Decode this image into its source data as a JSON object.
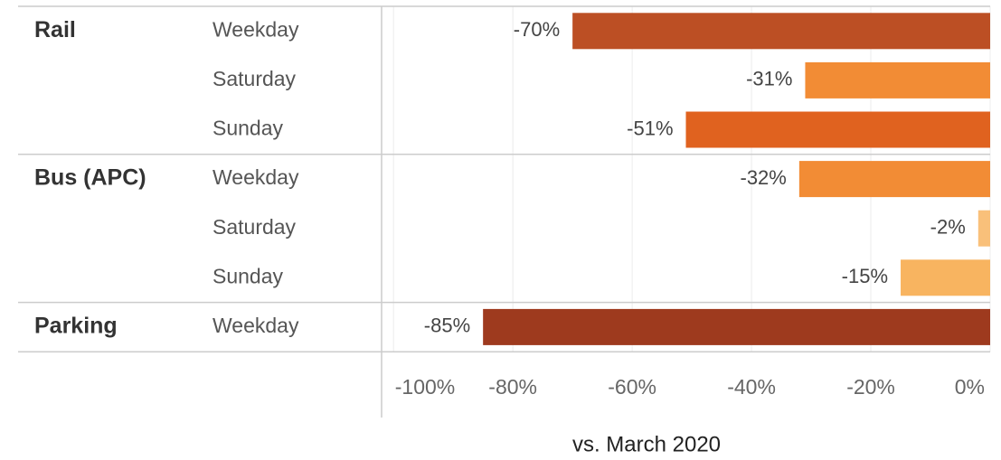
{
  "chart_data": {
    "type": "bar",
    "orientation": "horizontal",
    "categories": [
      "Weekday",
      "Saturday",
      "Sunday",
      "Weekday",
      "Saturday",
      "Sunday",
      "Weekday"
    ],
    "groups": [
      "Rail",
      null,
      null,
      "Bus (APC)",
      null,
      null,
      "Parking"
    ],
    "values": [
      -70,
      -31,
      -51,
      -32,
      -2,
      -15,
      -85
    ],
    "value_labels": [
      "-70%",
      "-31%",
      "-51%",
      "-32%",
      "-2%",
      "-15%",
      "-85%"
    ],
    "colors": [
      "#bc4f24",
      "#f28c35",
      "#e0621f",
      "#f28c35",
      "#f9c07a",
      "#f8b460",
      "#9e3a1e"
    ],
    "xlabel": "vs. March 2020",
    "xlim": [
      -102,
      0
    ],
    "xticks": [
      {
        "value": -100,
        "label": "-100%"
      },
      {
        "value": -80,
        "label": "-80%"
      },
      {
        "value": -60,
        "label": "-60%"
      },
      {
        "value": -40,
        "label": "-40%"
      },
      {
        "value": -20,
        "label": "-20%"
      },
      {
        "value": 0,
        "label": "0%"
      }
    ],
    "grid": true
  }
}
